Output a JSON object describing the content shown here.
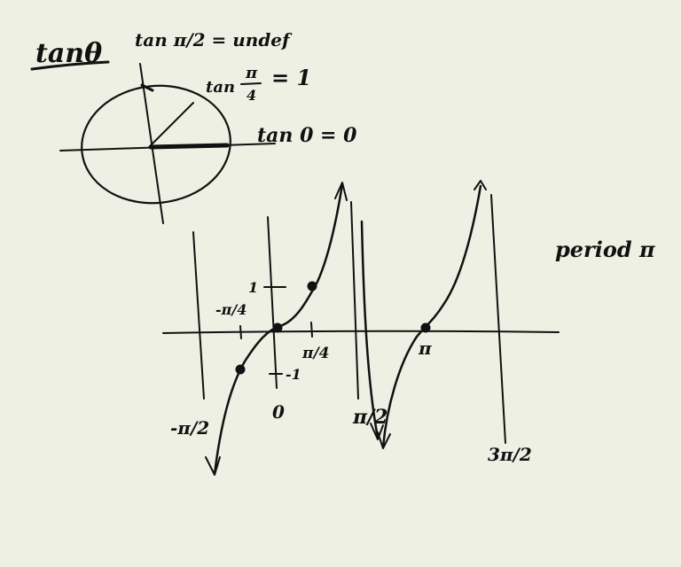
{
  "colors": {
    "paper": "#eef0e4",
    "ink": "#111111"
  },
  "heading": {
    "title": "tanθ"
  },
  "unit_circle": {
    "labels": {
      "tan_pi_over_2": "tan π/2 = undef",
      "tan_pi_over_4_prefix": "tan",
      "tan_pi_over_4_num": "π",
      "tan_pi_over_4_den": "4",
      "tan_pi_over_4_value": "= 1",
      "tan_0": "tan 0 = 0"
    }
  },
  "graph": {
    "note": "period π",
    "y_ticks": {
      "pos": "1",
      "neg": "-1"
    },
    "x_ticks": {
      "neg_pi_over_4": "-π/4",
      "pi_over_4": "π/4",
      "pi": "π"
    },
    "asymptote_labels": {
      "neg_pi_over_2": "-π/2",
      "zero": "0",
      "pi_over_2": "π/2",
      "three_pi_over_2": "3π/2"
    }
  }
}
